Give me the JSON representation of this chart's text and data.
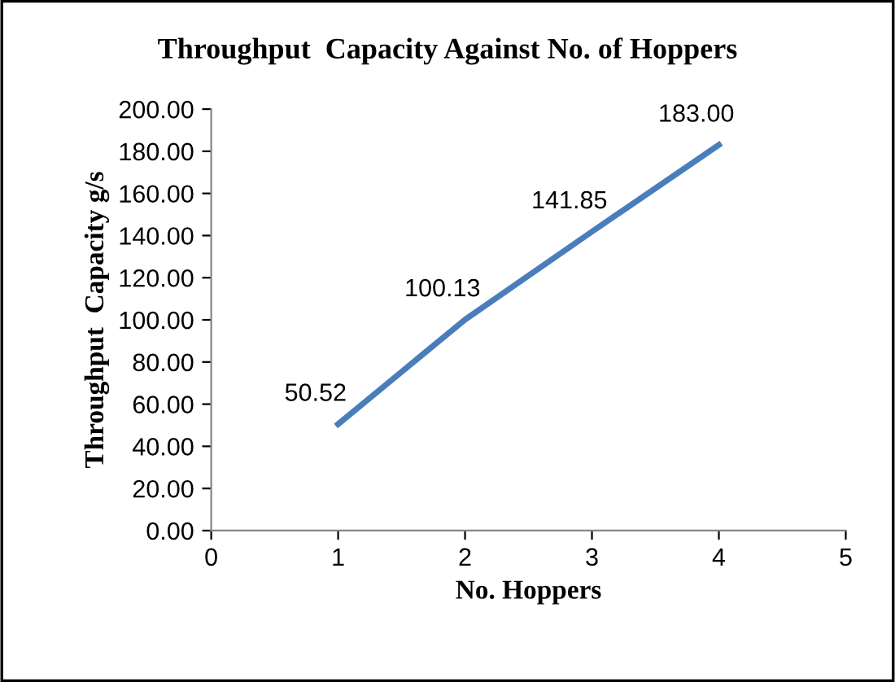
{
  "chart_data": {
    "type": "line",
    "title": "Throughput  Capacity Against No. of Hoppers",
    "xlabel": "No. Hoppers",
    "ylabel": "Throughput  Capacity g/s",
    "x": [
      1,
      2,
      3,
      4
    ],
    "series": [
      {
        "color": "#4a7ebb",
        "values": [
          50.52,
          100.13,
          141.85,
          183.0
        ],
        "value_labels": [
          "50.52",
          "100.13",
          "141.85",
          "183.00"
        ]
      }
    ],
    "xlim": [
      0,
      5
    ],
    "xticks": [
      0,
      1,
      2,
      3,
      4,
      5
    ],
    "ylim": [
      0,
      200
    ],
    "yticks": [
      {
        "value": 0,
        "label": "0.00"
      },
      {
        "value": 20,
        "label": "20.00"
      },
      {
        "value": 40,
        "label": "40.00"
      },
      {
        "value": 60,
        "label": "60.00"
      },
      {
        "value": 80,
        "label": "80.00"
      },
      {
        "value": 100,
        "label": "100.00"
      },
      {
        "value": 120,
        "label": "120.00"
      },
      {
        "value": 140,
        "label": "140.00"
      },
      {
        "value": 160,
        "label": "160.00"
      },
      {
        "value": 180,
        "label": "180.00"
      },
      {
        "value": 200,
        "label": "200.00"
      }
    ],
    "grid": false,
    "legend": false,
    "marker": "none",
    "line_style": "solid"
  }
}
